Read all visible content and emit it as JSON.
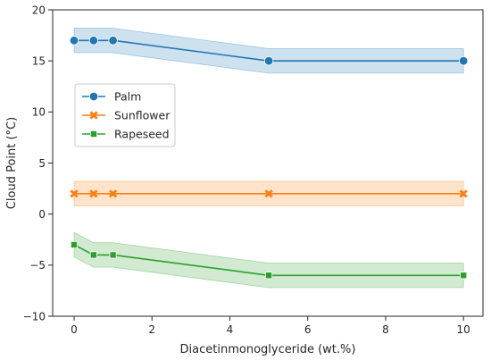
{
  "chart_data": {
    "type": "line",
    "title": "",
    "xlabel": "Diacetinmonoglyceride (wt.%)",
    "ylabel": "Cloud Point (°C)",
    "xlim": [
      -0.55,
      10.5
    ],
    "ylim": [
      -10,
      20
    ],
    "xticks": [
      0,
      2,
      4,
      6,
      8,
      10
    ],
    "yticks": [
      -10,
      -5,
      0,
      5,
      10,
      15,
      20
    ],
    "grid": false,
    "legend_position": "center-left",
    "x": [
      0,
      0.5,
      1,
      5,
      10
    ],
    "series": [
      {
        "name": "Palm",
        "color": "#1f77b4",
        "marker": "circle",
        "values": [
          17,
          17,
          17,
          15,
          15
        ],
        "lower": [
          15.8,
          15.8,
          15.8,
          13.8,
          13.8
        ],
        "upper": [
          18.2,
          18.2,
          18.2,
          16.2,
          16.2
        ]
      },
      {
        "name": "Sunflower",
        "color": "#ff7f0e",
        "marker": "x",
        "values": [
          2,
          2,
          2,
          2,
          2
        ],
        "lower": [
          0.8,
          0.8,
          0.8,
          0.8,
          0.8
        ],
        "upper": [
          3.2,
          3.2,
          3.2,
          3.2,
          3.2
        ]
      },
      {
        "name": "Rapeseed",
        "color": "#2ca02c",
        "marker": "square",
        "values": [
          -3,
          -4,
          -4,
          -6,
          -6
        ],
        "lower": [
          -4.2,
          -5.2,
          -5.2,
          -7.2,
          -7.2
        ],
        "upper": [
          -1.8,
          -2.8,
          -2.8,
          -4.8,
          -4.8
        ]
      }
    ]
  }
}
